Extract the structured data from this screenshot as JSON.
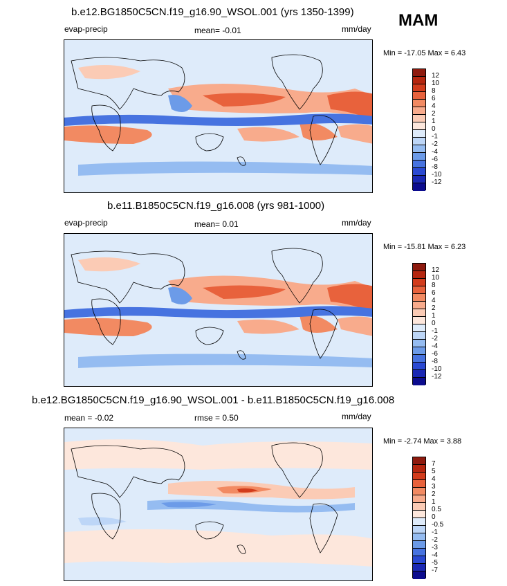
{
  "season": "MAM",
  "panels": [
    {
      "title": "b.e12.BG1850C5CN.f19_g16.90_WSOL.001 (yrs 1350-1399)",
      "left_label": "evap-precip",
      "center_label": "mean=  -0.01",
      "units": "mm/day",
      "minmax": "Min = -17.05 Max =   6.43"
    },
    {
      "title": "b.e11.B1850C5CN.f19_g16.008 (yrs 981-1000)",
      "left_label": "evap-precip",
      "center_label": "mean=  0.01",
      "units": "mm/day",
      "minmax": "Min = -15.81 Max =   6.23"
    },
    {
      "title": "b.e12.BG1850C5CN.f19_g16.90_WSOL.001 - b.e11.B1850C5CN.f19_g16.008",
      "left_label": "mean =  -0.02",
      "center_label": "rmse =   0.50",
      "units": "mm/day",
      "minmax": "Min = -2.74 Max =  3.88"
    }
  ],
  "colorbar_abs": {
    "labels": [
      "12",
      "10",
      "8",
      "6",
      "4",
      "2",
      "1",
      "0",
      "-1",
      "-2",
      "-4",
      "-6",
      "-8",
      "-10",
      "-12"
    ],
    "colors": [
      "#8e1a0e",
      "#b5260f",
      "#d23c1c",
      "#e8623c",
      "#f28a62",
      "#f8ab8c",
      "#fbcbb5",
      "#fde7dc",
      "#deebfa",
      "#bdd6f7",
      "#95bcf1",
      "#6c9be8",
      "#4773e0",
      "#2a49d2",
      "#1a28b4",
      "#0c0c8e"
    ]
  },
  "colorbar_diff": {
    "labels": [
      "7",
      "5",
      "4",
      "3",
      "2",
      "1",
      "0.5",
      "0",
      "-0.5",
      "-1",
      "-2",
      "-3",
      "-4",
      "-5",
      "-7"
    ],
    "colors": [
      "#8e1a0e",
      "#b5260f",
      "#d23c1c",
      "#e8623c",
      "#f28a62",
      "#f8ab8c",
      "#fbcbb5",
      "#fde7dc",
      "#deebfa",
      "#bdd6f7",
      "#95bcf1",
      "#6c9be8",
      "#4773e0",
      "#2a49d2",
      "#1a28b4",
      "#0c0c8e"
    ]
  }
}
